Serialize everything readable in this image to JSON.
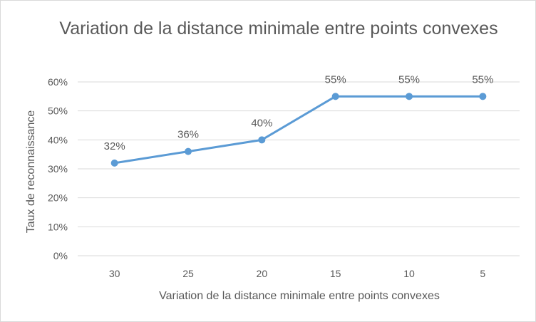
{
  "chart_data": {
    "type": "line",
    "title": "Variation de la distance minimale entre points convexes",
    "xlabel": "Variation de la distance minimale entre points convexes",
    "ylabel": "Taux de reconnaissance",
    "categories": [
      "30",
      "25",
      "20",
      "15",
      "10",
      "5"
    ],
    "values": [
      0.32,
      0.36,
      0.4,
      0.55,
      0.55,
      0.55
    ],
    "data_labels": [
      "32%",
      "36%",
      "40%",
      "55%",
      "55%",
      "55%"
    ],
    "ylim": [
      0,
      0.6
    ],
    "yticks": [
      0,
      0.1,
      0.2,
      0.3,
      0.4,
      0.5,
      0.6
    ],
    "ytick_labels": [
      "0%",
      "10%",
      "20%",
      "30%",
      "40%",
      "50%",
      "60%"
    ],
    "grid": true,
    "legend": false,
    "line_color": "#5b9bd5",
    "grid_color": "#d9d9d9"
  }
}
